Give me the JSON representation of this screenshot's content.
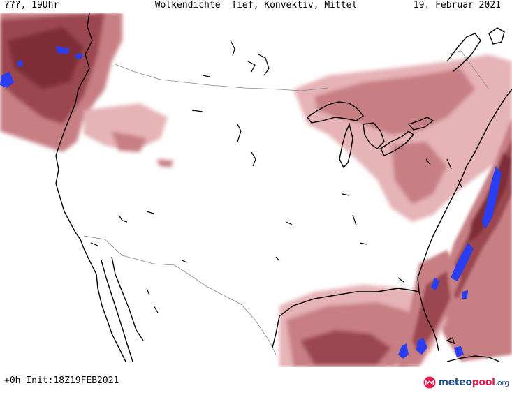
{
  "header": {
    "left": "???, 19Uhr",
    "center": "Wolkendichte  Tief, Konvektiv, Mittel",
    "right": "19. Februar 2021"
  },
  "footer": {
    "left": "+0h Init:18Z19FEB2021",
    "logo_part1": "meteo",
    "logo_part2": "pool",
    "logo_part3": ".org"
  },
  "colors": {
    "cloud_light": "#e6b3b6",
    "cloud_medium": "#c77f84",
    "cloud_dark": "#9c474f",
    "cloud_very_dark": "#7f2f38",
    "high_density": "#2b3df0",
    "coastline": "#000000",
    "border": "#888888"
  },
  "map": {
    "region": "North America (USA)",
    "icons": [
      "meteopool-logo-icon"
    ]
  }
}
